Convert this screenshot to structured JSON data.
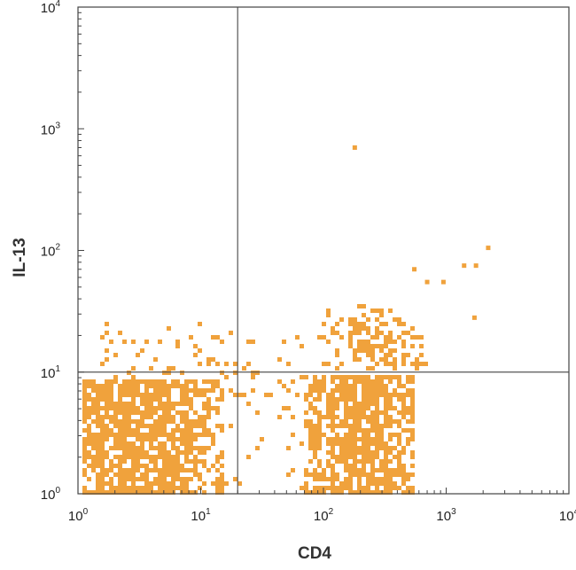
{
  "chart_data": {
    "type": "scatter",
    "title": "",
    "xlabel": "CD4",
    "ylabel": "IL-13",
    "x_scale": "log",
    "y_scale": "log",
    "xlim": [
      1,
      10000
    ],
    "ylim": [
      1,
      10000
    ],
    "x_ticks": [
      {
        "value": 1,
        "base": "10",
        "exp": "0"
      },
      {
        "value": 10,
        "base": "10",
        "exp": "1"
      },
      {
        "value": 100,
        "base": "10",
        "exp": "2"
      },
      {
        "value": 1000,
        "base": "10",
        "exp": "3"
      },
      {
        "value": 10000,
        "base": "10",
        "exp": "4"
      }
    ],
    "y_ticks": [
      {
        "value": 1,
        "base": "10",
        "exp": "0"
      },
      {
        "value": 10,
        "base": "10",
        "exp": "1"
      },
      {
        "value": 100,
        "base": "10",
        "exp": "2"
      },
      {
        "value": 1000,
        "base": "10",
        "exp": "3"
      },
      {
        "value": 10000,
        "base": "10",
        "exp": "4"
      }
    ],
    "quadrant_gates": {
      "x": 20,
      "y": 10
    },
    "grid": false,
    "point_color": "#F0A23C",
    "populations": [
      {
        "x_range": [
          1.1,
          16
        ],
        "y_range": [
          1,
          9
        ],
        "density": "high"
      },
      {
        "x_range": [
          70,
          550
        ],
        "y_range": [
          1,
          9.5
        ],
        "density": "high"
      },
      {
        "x_range": [
          90,
          700
        ],
        "y_range": [
          10,
          40
        ],
        "density": "medium"
      },
      {
        "x_range": [
          1.5,
          20
        ],
        "y_range": [
          10,
          25
        ],
        "density": "low"
      }
    ],
    "outliers": [
      {
        "x": 180,
        "y": 700
      },
      {
        "x": 2200,
        "y": 105
      },
      {
        "x": 1750,
        "y": 75
      },
      {
        "x": 1400,
        "y": 75
      },
      {
        "x": 1700,
        "y": 28
      },
      {
        "x": 950,
        "y": 55
      },
      {
        "x": 700,
        "y": 55
      },
      {
        "x": 550,
        "y": 70
      }
    ]
  }
}
